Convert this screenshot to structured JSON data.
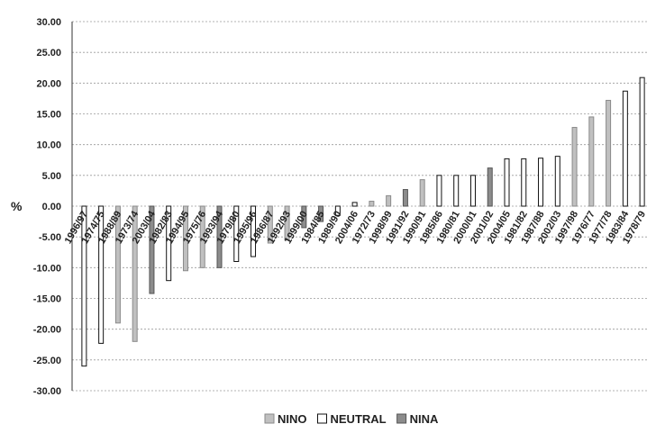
{
  "chart_data": {
    "type": "bar",
    "title": "",
    "xlabel": "",
    "ylabel": "%",
    "ylim": [
      -30,
      30
    ],
    "ytick_step": 5,
    "grid": true,
    "legend_position": "bottom",
    "legend": [
      {
        "name": "NINO",
        "color": "#c0c0c0",
        "stroke": "#8a8a8a"
      },
      {
        "name": "NEUTRAL",
        "color": "#ffffff",
        "stroke": "#111111"
      },
      {
        "name": "NINA",
        "color": "#8c8c8c",
        "stroke": "#555555"
      }
    ],
    "categories": [
      "1996/97",
      "1974/75",
      "1988/89",
      "1973/74",
      "2003/04",
      "1982/83",
      "1994/95",
      "1975/76",
      "1993/94",
      "1979/80",
      "1995/96",
      "1986/87",
      "1992/93",
      "1999/00",
      "1984/85",
      "1989/90",
      "2004/06",
      "1972/73",
      "1998/99",
      "1991/92",
      "1990/91",
      "1985/86",
      "1980/81",
      "2000/01",
      "2001/02",
      "2004/05",
      "1981/82",
      "1987/88",
      "2002/03",
      "1997/98",
      "1976/77",
      "1977/78",
      "1983/84",
      "1978/79"
    ],
    "values": [
      -26.0,
      -22.3,
      -19.0,
      -22.0,
      -14.2,
      -12.1,
      -10.5,
      -10.0,
      -10.0,
      -9.0,
      -8.2,
      -6.0,
      -5.5,
      -3.5,
      -2.5,
      -1.5,
      0.6,
      0.8,
      1.7,
      2.7,
      4.3,
      5.0,
      5.0,
      5.0,
      6.2,
      7.7,
      7.7,
      7.8,
      8.1,
      12.8,
      14.5,
      17.2,
      18.7,
      20.9
    ],
    "phases": [
      "NEUTRAL",
      "NEUTRAL",
      "NINO",
      "NINO",
      "NINA",
      "NEUTRAL",
      "NINO",
      "NINO",
      "NINA",
      "NEUTRAL",
      "NEUTRAL",
      "NINO",
      "NINO",
      "NINA",
      "NINA",
      "NEUTRAL",
      "NEUTRAL",
      "NINO",
      "NINO",
      "NINA",
      "NINO",
      "NEUTRAL",
      "NEUTRAL",
      "NEUTRAL",
      "NINA",
      "NEUTRAL",
      "NEUTRAL",
      "NEUTRAL",
      "NEUTRAL",
      "NINO",
      "NINO",
      "NINO",
      "NEUTRAL",
      "NEUTRAL"
    ]
  }
}
